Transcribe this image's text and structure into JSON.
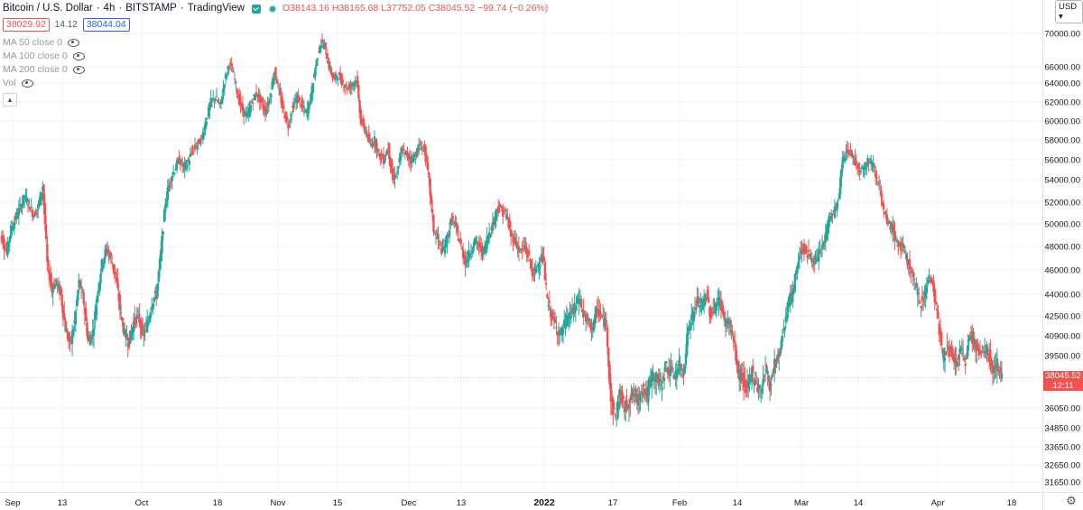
{
  "header": {
    "symbol": "Bitcoin / U.S. Dollar",
    "interval": "4h",
    "exchange": "BITSTAMP",
    "source": "TradingView",
    "ohlc": {
      "o_label": "O",
      "o": "38143.16",
      "h_label": "H",
      "h": "38165.68",
      "l_label": "L",
      "l": "37752.05",
      "c_label": "C",
      "c": "38045.52",
      "change": "−99.74 (−0.26%)"
    },
    "bid": "38029.92",
    "spread": "14.12",
    "ask": "38044.04"
  },
  "indicators": [
    {
      "label": "MA 50 close 0"
    },
    {
      "label": "MA 100 close 0"
    },
    {
      "label": "MA 200 close 0"
    },
    {
      "label": "Vol"
    }
  ],
  "currency_button": "USD",
  "last_price": {
    "value": "38045.52",
    "countdown": "12:11"
  },
  "colors": {
    "up": "#26a69a",
    "down": "#ef5350",
    "grid": "#f0f3fa",
    "text": "#131722",
    "axis_text": "#131722"
  },
  "chart_data": {
    "type": "candlestick",
    "title": "Bitcoin / U.S. Dollar · 4h · BITSTAMP",
    "x_ticks": [
      "Sep",
      "13",
      "Oct",
      "18",
      "Nov",
      "15",
      "Dec",
      "13",
      "2022",
      "17",
      "Feb",
      "14",
      "Mar",
      "14",
      "Apr",
      "18"
    ],
    "y_ticks": [
      "70000.00",
      "66000.00",
      "64000.00",
      "62000.00",
      "60000.00",
      "58000.00",
      "56000.00",
      "54000.00",
      "52000.00",
      "50000.00",
      "48000.00",
      "46000.00",
      "44000.00",
      "42500.00",
      "40900.00",
      "39500.00",
      "36050.00",
      "34850.00",
      "33650.00",
      "32650.00",
      "31650.00"
    ],
    "x_range": [
      "2021-09-01",
      "2022-04-15"
    ],
    "last_close": 38045.52,
    "series": [
      {
        "close": [
          48800,
          47500,
          49500,
          50500,
          51500,
          52500,
          51800,
          50800,
          51600,
          53500,
          46500,
          44500,
          45000,
          44000,
          41500,
          40200,
          42000,
          45000,
          43500,
          40500,
          41200,
          44000,
          46500,
          47800,
          47000,
          45500,
          43000,
          41000,
          40500,
          42000,
          42500,
          41000,
          41800,
          43500,
          44000,
          47500,
          52000,
          54000,
          55000,
          56000,
          55200,
          55800,
          57000,
          57500,
          58200,
          60200,
          62000,
          62500,
          61500,
          64200,
          66500,
          65000,
          62500,
          61000,
          60500,
          62000,
          63000,
          62000,
          61000,
          62500,
          65500,
          63000,
          61000,
          59500,
          61500,
          62500,
          61500,
          60800,
          62500,
          66000,
          68800,
          68500,
          66000,
          64500,
          65000,
          64000,
          63500,
          63800,
          64500,
          60000,
          59000,
          57500,
          58000,
          56500,
          56000,
          57300,
          54000,
          54800,
          57000,
          56500,
          56000,
          56500,
          57500,
          57000,
          53800,
          49500,
          48500,
          47500,
          48800,
          50500,
          49500,
          48000,
          46700,
          47500,
          48500,
          48000,
          47500,
          49000,
          50000,
          51500,
          51200,
          50800,
          49000,
          48500,
          47500,
          48000,
          47000,
          45500,
          46500,
          47200,
          43500,
          42500,
          41500,
          41000,
          42000,
          42500,
          43000,
          43800,
          42500,
          42000,
          41500,
          43000,
          42300,
          41800,
          36500,
          35500,
          37000,
          36000,
          36600,
          37000,
          36500,
          37500,
          36800,
          38200,
          38000,
          37500,
          38800,
          38500,
          38200,
          38800,
          38500,
          41500,
          42500,
          43500,
          43200,
          44000,
          42500,
          43300,
          43600,
          42000,
          42000,
          40500,
          38300,
          38000,
          37200,
          38500,
          37600,
          37100,
          38800,
          37500,
          39000,
          39500,
          41500,
          43500,
          44000,
          46500,
          48000,
          47500,
          47000,
          46500,
          47500,
          48500,
          50500,
          51000,
          52000,
          56000,
          57000,
          56500,
          55500,
          55000,
          55500,
          56000,
          55000,
          53500,
          51000,
          50000,
          49500,
          48200,
          48000,
          47000,
          46000,
          44500,
          43500,
          44000,
          45500,
          44500,
          42000,
          39500,
          40000,
          39500,
          39000,
          39800,
          39200,
          41000,
          40500,
          39500,
          39900,
          39800,
          38500,
          39000,
          38045.52
        ]
      }
    ]
  }
}
